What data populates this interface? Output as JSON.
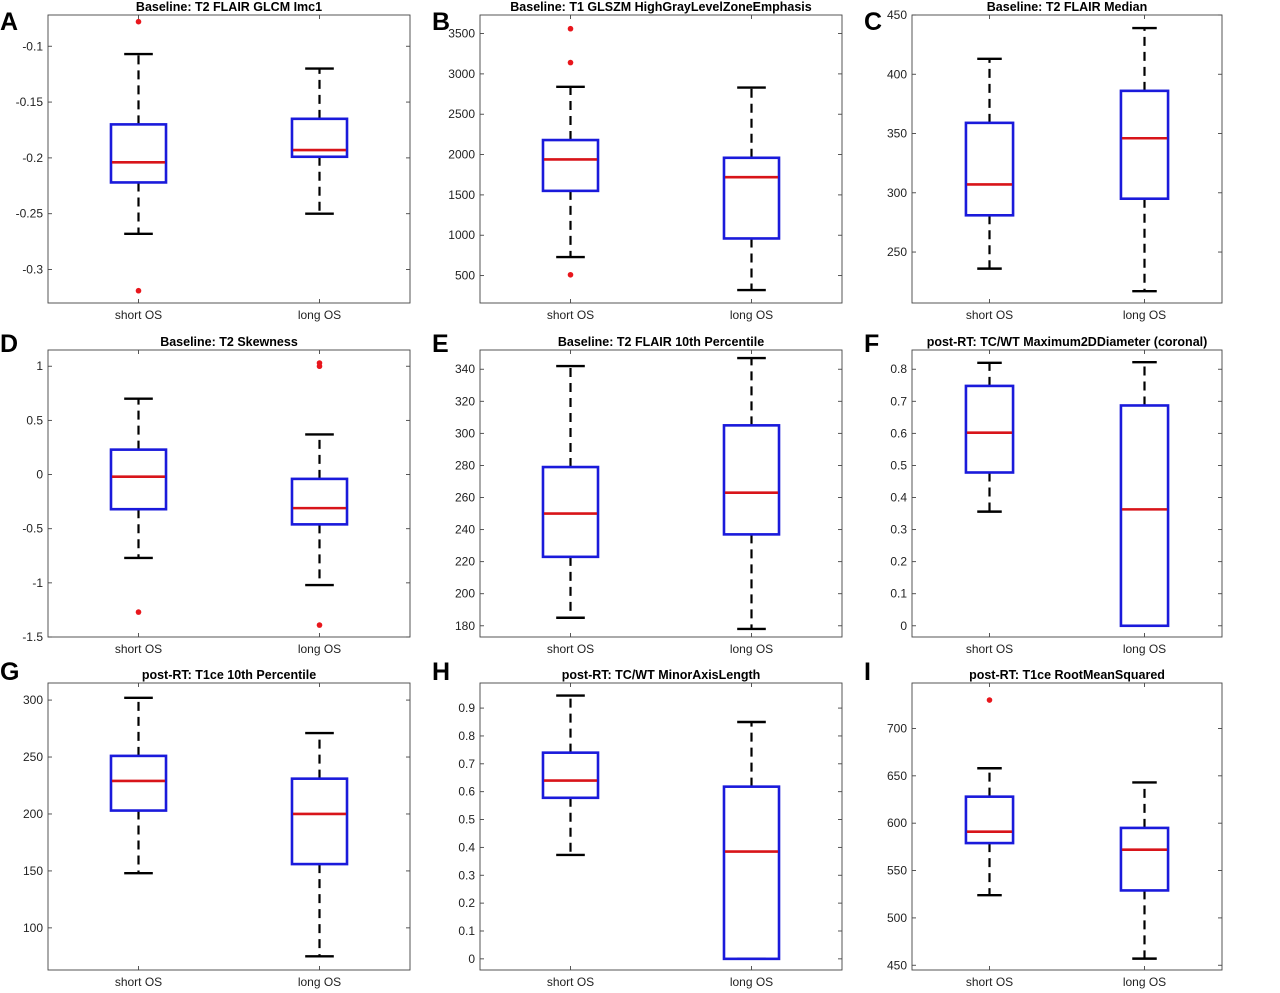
{
  "chart_data": [
    {
      "type": "box",
      "panel_label": "A",
      "title": "Baseline: T2 FLAIR GLCM Imc1",
      "categories": [
        "short OS",
        "long OS"
      ],
      "ylim": [
        -0.33,
        -0.072
      ],
      "yticks": [
        -0.3,
        -0.25,
        -0.2,
        -0.15,
        -0.1
      ],
      "ytick_labels": [
        "-0.3",
        "-0.25",
        "-0.2",
        "-0.15",
        "-0.1"
      ],
      "boxes": [
        {
          "whisker_low": -0.268,
          "q1": -0.222,
          "median": -0.204,
          "q3": -0.17,
          "whisker_high": -0.107,
          "outliers": [
            -0.078,
            -0.319
          ]
        },
        {
          "whisker_low": -0.25,
          "q1": -0.199,
          "median": -0.193,
          "q3": -0.165,
          "whisker_high": -0.12,
          "outliers": []
        }
      ]
    },
    {
      "type": "box",
      "panel_label": "B",
      "title": "Baseline: T1 GLSZM HighGrayLevelZoneEmphasis",
      "categories": [
        "short OS",
        "long OS"
      ],
      "ylim": [
        160,
        3730
      ],
      "yticks": [
        500,
        1000,
        1500,
        2000,
        2500,
        3000,
        3500
      ],
      "ytick_labels": [
        "500",
        "1000",
        "1500",
        "2000",
        "2500",
        "3000",
        "3500"
      ],
      "boxes": [
        {
          "whisker_low": 730,
          "q1": 1550,
          "median": 1940,
          "q3": 2180,
          "whisker_high": 2840,
          "outliers": [
            3560,
            3140,
            510
          ]
        },
        {
          "whisker_low": 320,
          "q1": 960,
          "median": 1720,
          "q3": 1960,
          "whisker_high": 2830,
          "outliers": []
        }
      ]
    },
    {
      "type": "box",
      "panel_label": "C",
      "title": "Baseline: T2 FLAIR Median",
      "categories": [
        "short OS",
        "long OS"
      ],
      "ylim": [
        207,
        450
      ],
      "yticks": [
        250,
        300,
        350,
        400,
        450
      ],
      "ytick_labels": [
        "250",
        "300",
        "350",
        "400",
        "450"
      ],
      "boxes": [
        {
          "whisker_low": 236,
          "q1": 281,
          "median": 307,
          "q3": 359,
          "whisker_high": 413,
          "outliers": []
        },
        {
          "whisker_low": 217,
          "q1": 295,
          "median": 346,
          "q3": 386,
          "whisker_high": 439,
          "outliers": []
        }
      ]
    },
    {
      "type": "box",
      "panel_label": "D",
      "title": "Baseline: T2 Skewness",
      "categories": [
        "short OS",
        "long OS"
      ],
      "ylim": [
        -1.5,
        1.15
      ],
      "yticks": [
        -1.5,
        -1,
        -0.5,
        0,
        0.5,
        1
      ],
      "ytick_labels": [
        "-1.5",
        "-1",
        "-0.5",
        "0",
        "0.5",
        "1"
      ],
      "boxes": [
        {
          "whisker_low": -0.77,
          "q1": -0.32,
          "median": -0.02,
          "q3": 0.23,
          "whisker_high": 0.7,
          "outliers": [
            -1.27
          ]
        },
        {
          "whisker_low": -1.02,
          "q1": -0.46,
          "median": -0.31,
          "q3": -0.04,
          "whisker_high": 0.37,
          "outliers": [
            1.03,
            1.0,
            -1.39
          ]
        }
      ]
    },
    {
      "type": "box",
      "panel_label": "E",
      "title": "Baseline: T2 FLAIR 10th Percentile",
      "categories": [
        "short OS",
        "long OS"
      ],
      "ylim": [
        173,
        352
      ],
      "yticks": [
        180,
        200,
        220,
        240,
        260,
        280,
        300,
        320,
        340
      ],
      "ytick_labels": [
        "180",
        "200",
        "220",
        "240",
        "260",
        "280",
        "300",
        "320",
        "340"
      ],
      "boxes": [
        {
          "whisker_low": 185,
          "q1": 223,
          "median": 250,
          "q3": 279,
          "whisker_high": 342,
          "outliers": []
        },
        {
          "whisker_low": 178,
          "q1": 237,
          "median": 263,
          "q3": 305,
          "whisker_high": 347,
          "outliers": []
        }
      ]
    },
    {
      "type": "box",
      "panel_label": "F",
      "title": "post-RT: TC/WT Maximum2DDiameter (coronal)",
      "categories": [
        "short OS",
        "long OS"
      ],
      "ylim": [
        -0.035,
        0.86
      ],
      "yticks": [
        0,
        0.1,
        0.2,
        0.3,
        0.4,
        0.5,
        0.6,
        0.7,
        0.8
      ],
      "ytick_labels": [
        "0",
        "0.1",
        "0.2",
        "0.3",
        "0.4",
        "0.5",
        "0.6",
        "0.7",
        "0.8"
      ],
      "boxes": [
        {
          "whisker_low": 0.356,
          "q1": 0.478,
          "median": 0.602,
          "q3": 0.748,
          "whisker_high": 0.82,
          "outliers": []
        },
        {
          "whisker_low": 0.0,
          "q1": 0.0,
          "median": 0.363,
          "q3": 0.687,
          "whisker_high": 0.822,
          "outliers": []
        }
      ]
    },
    {
      "type": "box",
      "panel_label": "G",
      "title": "post-RT: T1ce 10th Percentile",
      "categories": [
        "short OS",
        "long OS"
      ],
      "ylim": [
        63,
        315
      ],
      "yticks": [
        100,
        150,
        200,
        250,
        300
      ],
      "ytick_labels": [
        "100",
        "150",
        "200",
        "250",
        "300"
      ],
      "boxes": [
        {
          "whisker_low": 148,
          "q1": 203,
          "median": 229,
          "q3": 251,
          "whisker_high": 302,
          "outliers": []
        },
        {
          "whisker_low": 75,
          "q1": 156,
          "median": 200,
          "q3": 231,
          "whisker_high": 271,
          "outliers": []
        }
      ]
    },
    {
      "type": "box",
      "panel_label": "H",
      "title": "post-RT: TC/WT MinorAxisLength",
      "categories": [
        "short OS",
        "long OS"
      ],
      "ylim": [
        -0.04,
        0.99
      ],
      "yticks": [
        0,
        0.1,
        0.2,
        0.3,
        0.4,
        0.5,
        0.6,
        0.7,
        0.8,
        0.9
      ],
      "ytick_labels": [
        "0",
        "0.1",
        "0.2",
        "0.3",
        "0.4",
        "0.5",
        "0.6",
        "0.7",
        "0.8",
        "0.9"
      ],
      "boxes": [
        {
          "whisker_low": 0.373,
          "q1": 0.578,
          "median": 0.64,
          "q3": 0.74,
          "whisker_high": 0.945,
          "outliers": []
        },
        {
          "whisker_low": 0.0,
          "q1": 0.0,
          "median": 0.385,
          "q3": 0.618,
          "whisker_high": 0.85,
          "outliers": []
        }
      ]
    },
    {
      "type": "box",
      "panel_label": "I",
      "title": "post-RT: T1ce RootMeanSquared",
      "categories": [
        "short OS",
        "long OS"
      ],
      "ylim": [
        445,
        748
      ],
      "yticks": [
        450,
        500,
        550,
        600,
        650,
        700
      ],
      "ytick_labels": [
        "450",
        "500",
        "550",
        "600",
        "650",
        "700"
      ],
      "boxes": [
        {
          "whisker_low": 524,
          "q1": 579,
          "median": 591,
          "q3": 628,
          "whisker_high": 658,
          "outliers": [
            730
          ]
        },
        {
          "whisker_low": 457,
          "q1": 529,
          "median": 572,
          "q3": 595,
          "whisker_high": 643,
          "outliers": []
        }
      ]
    }
  ],
  "colors": {
    "box": "#1a1adb",
    "median": "#d8141a",
    "whisker": "#000000",
    "outlier": "#e8161c",
    "axes": "#444444"
  }
}
